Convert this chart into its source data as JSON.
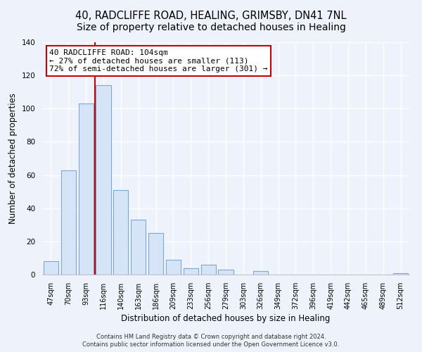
{
  "title": "40, RADCLIFFE ROAD, HEALING, GRIMSBY, DN41 7NL",
  "subtitle": "Size of property relative to detached houses in Healing",
  "xlabel": "Distribution of detached houses by size in Healing",
  "ylabel": "Number of detached properties",
  "bar_labels": [
    "47sqm",
    "70sqm",
    "93sqm",
    "116sqm",
    "140sqm",
    "163sqm",
    "186sqm",
    "209sqm",
    "233sqm",
    "256sqm",
    "279sqm",
    "303sqm",
    "326sqm",
    "349sqm",
    "372sqm",
    "396sqm",
    "419sqm",
    "442sqm",
    "465sqm",
    "489sqm",
    "512sqm"
  ],
  "bar_heights": [
    8,
    63,
    103,
    114,
    51,
    33,
    25,
    9,
    4,
    6,
    3,
    0,
    2,
    0,
    0,
    0,
    0,
    0,
    0,
    0,
    1
  ],
  "bar_color": "#d6e4f7",
  "bar_edge_color": "#7aaad4",
  "vline_color": "#cc0000",
  "annotation_title": "40 RADCLIFFE ROAD: 104sqm",
  "annotation_line1": "← 27% of detached houses are smaller (113)",
  "annotation_line2": "72% of semi-detached houses are larger (301) →",
  "annotation_box_facecolor": "white",
  "annotation_box_edgecolor": "#cc0000",
  "ylim": [
    0,
    140
  ],
  "yticks": [
    0,
    20,
    40,
    60,
    80,
    100,
    120,
    140
  ],
  "footer1": "Contains HM Land Registry data © Crown copyright and database right 2024.",
  "footer2": "Contains public sector information licensed under the Open Government Licence v3.0.",
  "bg_color": "#eef3fb",
  "plot_bg_color": "#eef3fb",
  "grid_color": "white",
  "title_fontsize": 10.5,
  "axis_label_fontsize": 8.5,
  "tick_fontsize": 7,
  "annotation_fontsize": 8,
  "footer_fontsize": 6
}
